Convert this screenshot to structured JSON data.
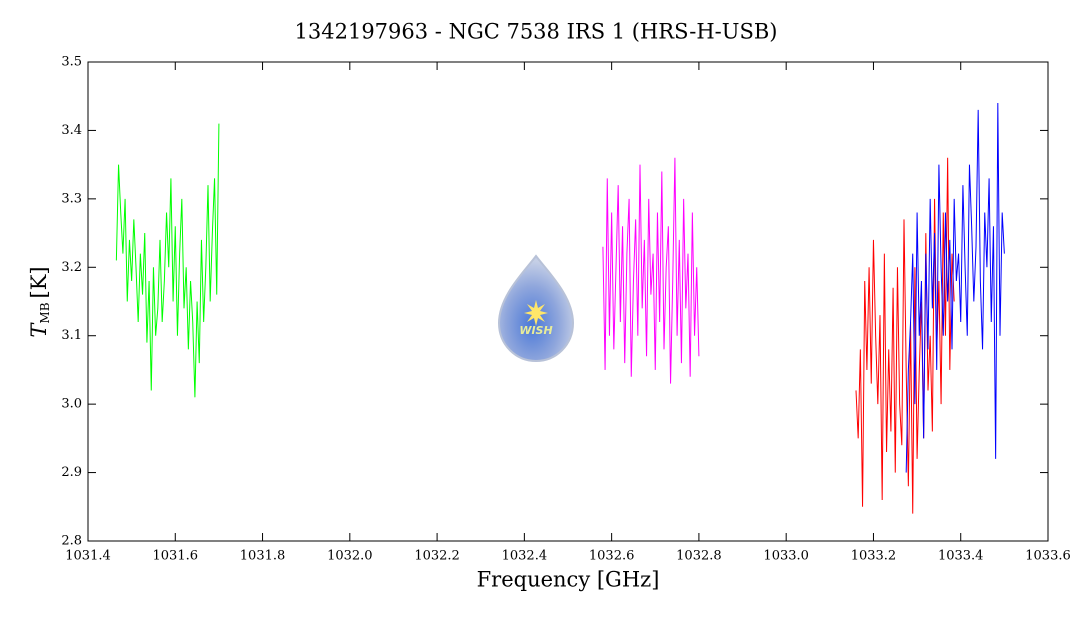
{
  "chart_data": {
    "type": "line",
    "title": "1342197963 - NGC 7538 IRS 1 (HRS-H-USB)",
    "xlabel": "Frequency [GHz]",
    "ylabel": {
      "symbol": "T",
      "subscript": "MB",
      "unit": "[K]"
    },
    "logo_text": "WISH",
    "xlim": [
      1031.4,
      1033.6
    ],
    "xticks": [
      1031.4,
      1031.6,
      1031.8,
      {
        "value": 1032,
        "label": "1032.0"
      },
      1032.2,
      1032.4,
      1032.6,
      1032.8,
      {
        "value": 1033,
        "label": "1033.0"
      },
      1033.2,
      1033.4,
      1033.6
    ],
    "ylim": [
      2.8,
      3.5
    ],
    "yticks": [
      2.8,
      2.9,
      {
        "value": 3,
        "label": "3.0"
      },
      3.1,
      3.2,
      3.3,
      3.4,
      3.5
    ],
    "grid": false,
    "series": [
      {
        "color": "#00ff00",
        "x": [
          1031.465,
          1031.47,
          1031.475,
          1031.48,
          1031.485,
          1031.49,
          1031.495,
          1031.5,
          1031.505,
          1031.51,
          1031.515,
          1031.52,
          1031.525,
          1031.53,
          1031.535,
          1031.54,
          1031.545,
          1031.55,
          1031.555,
          1031.56,
          1031.565,
          1031.57,
          1031.575,
          1031.58,
          1031.585,
          1031.59,
          1031.595,
          1031.6,
          1031.605,
          1031.61,
          1031.615,
          1031.62,
          1031.625,
          1031.63,
          1031.635,
          1031.64,
          1031.645,
          1031.65,
          1031.655,
          1031.66,
          1031.665,
          1031.67,
          1031.675,
          1031.68,
          1031.685,
          1031.69,
          1031.695,
          1031.7
        ],
        "values": [
          3.21,
          3.35,
          3.28,
          3.22,
          3.3,
          3.15,
          3.24,
          3.18,
          3.27,
          3.2,
          3.12,
          3.22,
          3.16,
          3.25,
          3.09,
          3.18,
          3.02,
          3.2,
          3.1,
          3.14,
          3.24,
          3.12,
          3.18,
          3.28,
          3.2,
          3.33,
          3.15,
          3.26,
          3.1,
          3.22,
          3.3,
          3.14,
          3.2,
          3.08,
          3.18,
          3.12,
          3.01,
          3.15,
          3.06,
          3.24,
          3.12,
          3.2,
          3.32,
          3.15,
          3.25,
          3.33,
          3.16,
          3.41
        ]
      },
      {
        "color": "#ff00ff",
        "x": [
          1032.58,
          1032.585,
          1032.59,
          1032.595,
          1032.6,
          1032.605,
          1032.61,
          1032.615,
          1032.62,
          1032.625,
          1032.63,
          1032.635,
          1032.64,
          1032.645,
          1032.65,
          1032.655,
          1032.66,
          1032.665,
          1032.67,
          1032.675,
          1032.68,
          1032.685,
          1032.69,
          1032.695,
          1032.7,
          1032.705,
          1032.71,
          1032.715,
          1032.72,
          1032.725,
          1032.73,
          1032.735,
          1032.74,
          1032.745,
          1032.75,
          1032.755,
          1032.76,
          1032.765,
          1032.77,
          1032.775,
          1032.78,
          1032.785,
          1032.79,
          1032.795,
          1032.8
        ],
        "values": [
          3.23,
          3.05,
          3.33,
          3.1,
          3.28,
          3.08,
          3.2,
          3.32,
          3.12,
          3.26,
          3.06,
          3.22,
          3.3,
          3.04,
          3.18,
          3.27,
          3.1,
          3.35,
          3.14,
          3.24,
          3.07,
          3.3,
          3.16,
          3.22,
          3.05,
          3.28,
          3.12,
          3.34,
          3.08,
          3.2,
          3.26,
          3.03,
          3.18,
          3.36,
          3.1,
          3.24,
          3.06,
          3.3,
          3.14,
          3.22,
          3.04,
          3.28,
          3.1,
          3.2,
          3.07
        ]
      },
      {
        "color": "#ff0000",
        "x": [
          1033.16,
          1033.165,
          1033.17,
          1033.175,
          1033.18,
          1033.185,
          1033.19,
          1033.195,
          1033.2,
          1033.205,
          1033.21,
          1033.215,
          1033.22,
          1033.225,
          1033.23,
          1033.235,
          1033.24,
          1033.245,
          1033.25,
          1033.255,
          1033.26,
          1033.265,
          1033.27,
          1033.275,
          1033.28,
          1033.285,
          1033.29,
          1033.295,
          1033.3,
          1033.305,
          1033.31,
          1033.315,
          1033.32,
          1033.325,
          1033.33,
          1033.335,
          1033.34,
          1033.345,
          1033.35,
          1033.355,
          1033.36,
          1033.365,
          1033.37,
          1033.375,
          1033.38,
          1033.385
        ],
        "values": [
          3.02,
          2.95,
          3.08,
          2.85,
          3.18,
          3.05,
          3.2,
          3.03,
          3.24,
          3.1,
          3.0,
          3.13,
          2.86,
          3.22,
          2.93,
          3.08,
          2.96,
          3.17,
          2.9,
          3.2,
          3.0,
          2.94,
          3.27,
          3.05,
          2.88,
          3.12,
          2.84,
          3.2,
          2.92,
          3.05,
          3.15,
          2.95,
          3.25,
          3.02,
          3.1,
          2.96,
          3.3,
          3.08,
          3.18,
          3.0,
          3.28,
          3.1,
          3.36,
          3.05,
          3.22,
          3.15
        ]
      },
      {
        "color": "#0000ff",
        "x": [
          1033.275,
          1033.28,
          1033.285,
          1033.29,
          1033.295,
          1033.3,
          1033.305,
          1033.31,
          1033.315,
          1033.32,
          1033.325,
          1033.33,
          1033.335,
          1033.34,
          1033.345,
          1033.35,
          1033.355,
          1033.36,
          1033.365,
          1033.37,
          1033.375,
          1033.38,
          1033.385,
          1033.39,
          1033.395,
          1033.4,
          1033.405,
          1033.41,
          1033.415,
          1033.42,
          1033.425,
          1033.43,
          1033.435,
          1033.44,
          1033.445,
          1033.45,
          1033.455,
          1033.46,
          1033.465,
          1033.47,
          1033.475,
          1033.48,
          1033.485,
          1033.49,
          1033.495,
          1033.5
        ],
        "values": [
          2.9,
          3.05,
          3.12,
          3.22,
          3.0,
          3.28,
          3.1,
          3.18,
          2.95,
          3.22,
          3.08,
          3.3,
          3.14,
          3.25,
          3.05,
          3.35,
          3.2,
          3.1,
          3.28,
          3.15,
          3.24,
          3.08,
          3.3,
          3.18,
          3.22,
          3.12,
          3.32,
          3.2,
          3.1,
          3.35,
          3.26,
          3.15,
          3.23,
          3.43,
          3.18,
          3.08,
          3.28,
          3.2,
          3.33,
          3.12,
          3.26,
          2.92,
          3.44,
          3.1,
          3.28,
          3.22
        ]
      }
    ]
  }
}
